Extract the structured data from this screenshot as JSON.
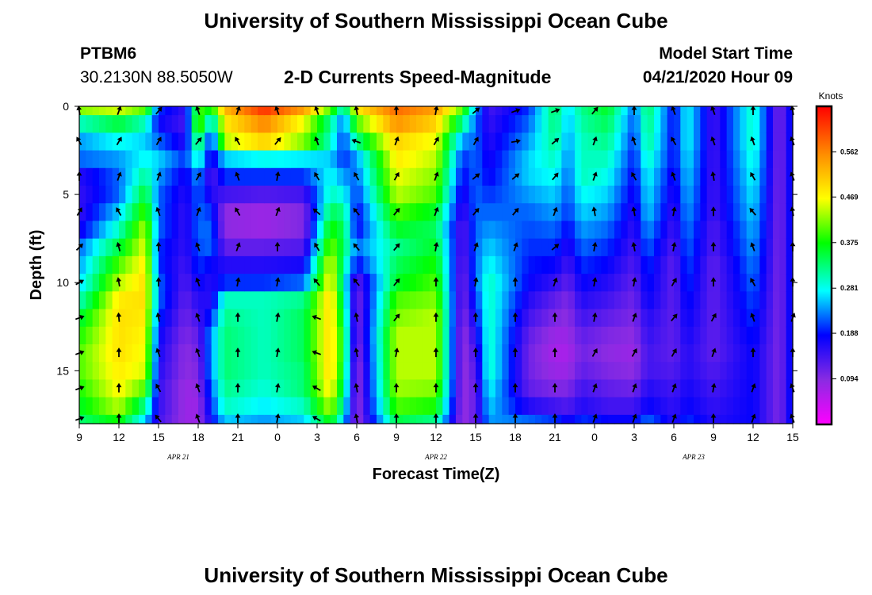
{
  "header": {
    "title": "University of Southern Mississippi Ocean Cube",
    "station_id": "PTBM6",
    "station_coords": "30.2130N 88.5050W",
    "subtitle": "2-D Currents Speed-Magnitude",
    "model_label": "Model Start Time",
    "model_time": "04/21/2020 Hour 09"
  },
  "footer": {
    "title": "University of Southern Mississippi Ocean Cube"
  },
  "chart_data": {
    "type": "heatmap",
    "xlabel": "Forecast Time(Z)",
    "ylabel": "Depth (ft)",
    "x_hours": [
      0,
      54
    ],
    "x_tick_labels": [
      "9",
      "12",
      "15",
      "18",
      "21",
      "0",
      "3",
      "6",
      "9",
      "12",
      "15",
      "18",
      "21",
      "0",
      "3",
      "6",
      "9",
      "12",
      "15"
    ],
    "date_labels": [
      {
        "label": "APR  21",
        "hour": 7.5
      },
      {
        "label": "APR  22",
        "hour": 27
      },
      {
        "label": "APR  23",
        "hour": 46.5
      }
    ],
    "y_range_ft": [
      0,
      18
    ],
    "y_ticks": [
      0,
      5,
      10,
      15
    ],
    "y_tick_labels": [
      "0",
      "5",
      "10",
      "15"
    ],
    "colorbar": {
      "unit": "Knots",
      "range": [
        0,
        0.656
      ],
      "ticks": [
        0.094,
        0.188,
        0.281,
        0.375,
        0.469,
        0.562
      ],
      "tick_labels": [
        "0.094",
        "0.188",
        "0.281",
        "0.375",
        "0.469",
        "0.562"
      ]
    },
    "grid": false,
    "depth_rows_ft": [
      0,
      1,
      2,
      3,
      4,
      5,
      6,
      7,
      8,
      9,
      10,
      11,
      12,
      13,
      14,
      15,
      16,
      17,
      18
    ],
    "speed_profiles": [
      {
        "hour": 0,
        "values": [
          0.42,
          0.3,
          0.24,
          0.22,
          0.16,
          0.15,
          0.15,
          0.17,
          0.22,
          0.24,
          0.26,
          0.3,
          0.35,
          0.38,
          0.4,
          0.4,
          0.38,
          0.36,
          0.33
        ]
      },
      {
        "hour": 3,
        "values": [
          0.45,
          0.35,
          0.28,
          0.24,
          0.22,
          0.22,
          0.26,
          0.3,
          0.35,
          0.4,
          0.44,
          0.48,
          0.49,
          0.49,
          0.49,
          0.48,
          0.47,
          0.44,
          0.38
        ]
      },
      {
        "hour": 5,
        "values": [
          0.4,
          0.3,
          0.26,
          0.28,
          0.32,
          0.36,
          0.4,
          0.44,
          0.46,
          0.48,
          0.49,
          0.49,
          0.48,
          0.47,
          0.46,
          0.45,
          0.4,
          0.32,
          0.26
        ]
      },
      {
        "hour": 6,
        "values": [
          0.2,
          0.18,
          0.22,
          0.26,
          0.24,
          0.22,
          0.22,
          0.22,
          0.2,
          0.2,
          0.22,
          0.22,
          0.2,
          0.18,
          0.17,
          0.16,
          0.15,
          0.15,
          0.14
        ]
      },
      {
        "hour": 8,
        "values": [
          0.15,
          0.14,
          0.16,
          0.2,
          0.17,
          0.16,
          0.15,
          0.15,
          0.15,
          0.14,
          0.13,
          0.12,
          0.11,
          0.1,
          0.09,
          0.09,
          0.08,
          0.08,
          0.08
        ]
      },
      {
        "hour": 9,
        "values": [
          0.4,
          0.42,
          0.36,
          0.3,
          0.24,
          0.22,
          0.22,
          0.22,
          0.21,
          0.2,
          0.18,
          0.16,
          0.14,
          0.12,
          0.11,
          0.1,
          0.09,
          0.08,
          0.08
        ]
      },
      {
        "hour": 10,
        "values": [
          0.36,
          0.26,
          0.18,
          0.16,
          0.13,
          0.16,
          0.2,
          0.22,
          0.22,
          0.18,
          0.16,
          0.16,
          0.2,
          0.24,
          0.24,
          0.24,
          0.22,
          0.2,
          0.18
        ]
      },
      {
        "hour": 11,
        "values": [
          0.52,
          0.48,
          0.44,
          0.26,
          0.2,
          0.14,
          0.09,
          0.09,
          0.12,
          0.16,
          0.2,
          0.3,
          0.32,
          0.33,
          0.33,
          0.33,
          0.32,
          0.3,
          0.26
        ]
      },
      {
        "hour": 14,
        "values": [
          0.62,
          0.56,
          0.5,
          0.28,
          0.2,
          0.13,
          0.08,
          0.08,
          0.12,
          0.16,
          0.2,
          0.3,
          0.3,
          0.3,
          0.3,
          0.3,
          0.29,
          0.27,
          0.24
        ]
      },
      {
        "hour": 17,
        "values": [
          0.54,
          0.46,
          0.42,
          0.27,
          0.2,
          0.14,
          0.1,
          0.1,
          0.13,
          0.17,
          0.22,
          0.32,
          0.34,
          0.34,
          0.34,
          0.33,
          0.33,
          0.3,
          0.26
        ]
      },
      {
        "hour": 19,
        "values": [
          0.4,
          0.32,
          0.3,
          0.26,
          0.28,
          0.3,
          0.34,
          0.38,
          0.42,
          0.46,
          0.48,
          0.5,
          0.5,
          0.5,
          0.5,
          0.5,
          0.48,
          0.44,
          0.38
        ]
      },
      {
        "hour": 20,
        "values": [
          0.28,
          0.22,
          0.2,
          0.2,
          0.24,
          0.28,
          0.32,
          0.34,
          0.34,
          0.32,
          0.3,
          0.32,
          0.34,
          0.36,
          0.36,
          0.35,
          0.33,
          0.3,
          0.26
        ]
      },
      {
        "hour": 21,
        "values": [
          0.48,
          0.4,
          0.32,
          0.24,
          0.22,
          0.2,
          0.18,
          0.18,
          0.22,
          0.18,
          0.12,
          0.1,
          0.1,
          0.1,
          0.09,
          0.08,
          0.08,
          0.08,
          0.08
        ]
      },
      {
        "hour": 24,
        "values": [
          0.58,
          0.55,
          0.5,
          0.48,
          0.46,
          0.44,
          0.4,
          0.36,
          0.32,
          0.34,
          0.36,
          0.4,
          0.42,
          0.44,
          0.44,
          0.44,
          0.43,
          0.4,
          0.35
        ]
      },
      {
        "hour": 27,
        "values": [
          0.54,
          0.5,
          0.46,
          0.44,
          0.42,
          0.4,
          0.36,
          0.34,
          0.36,
          0.38,
          0.4,
          0.42,
          0.44,
          0.44,
          0.44,
          0.44,
          0.42,
          0.38,
          0.32
        ]
      },
      {
        "hour": 29,
        "values": [
          0.4,
          0.32,
          0.24,
          0.2,
          0.18,
          0.16,
          0.14,
          0.12,
          0.12,
          0.11,
          0.1,
          0.1,
          0.09,
          0.08,
          0.08,
          0.08,
          0.08,
          0.08,
          0.08
        ]
      },
      {
        "hour": 30,
        "values": [
          0.24,
          0.22,
          0.22,
          0.22,
          0.22,
          0.22,
          0.22,
          0.22,
          0.22,
          0.22,
          0.22,
          0.2,
          0.18,
          0.16,
          0.14,
          0.13,
          0.12,
          0.12,
          0.12
        ]
      },
      {
        "hour": 31,
        "values": [
          0.14,
          0.15,
          0.16,
          0.17,
          0.18,
          0.2,
          0.22,
          0.24,
          0.26,
          0.28,
          0.3,
          0.3,
          0.3,
          0.3,
          0.3,
          0.3,
          0.28,
          0.26,
          0.24
        ]
      },
      {
        "hour": 34,
        "values": [
          0.2,
          0.22,
          0.24,
          0.26,
          0.26,
          0.24,
          0.22,
          0.21,
          0.2,
          0.19,
          0.18,
          0.16,
          0.14,
          0.12,
          0.11,
          0.11,
          0.12,
          0.16,
          0.22
        ]
      },
      {
        "hour": 36,
        "values": [
          0.34,
          0.33,
          0.32,
          0.3,
          0.28,
          0.26,
          0.24,
          0.22,
          0.2,
          0.18,
          0.15,
          0.12,
          0.1,
          0.08,
          0.07,
          0.08,
          0.1,
          0.14,
          0.2
        ]
      },
      {
        "hour": 37,
        "values": [
          0.26,
          0.25,
          0.24,
          0.23,
          0.22,
          0.21,
          0.2,
          0.18,
          0.16,
          0.14,
          0.12,
          0.1,
          0.09,
          0.08,
          0.07,
          0.08,
          0.1,
          0.13,
          0.17
        ]
      },
      {
        "hour": 38,
        "values": [
          0.32,
          0.31,
          0.3,
          0.3,
          0.3,
          0.28,
          0.26,
          0.24,
          0.22,
          0.2,
          0.18,
          0.16,
          0.14,
          0.12,
          0.11,
          0.12,
          0.14,
          0.16,
          0.2
        ]
      },
      {
        "hour": 40,
        "values": [
          0.36,
          0.34,
          0.32,
          0.3,
          0.28,
          0.26,
          0.24,
          0.22,
          0.2,
          0.18,
          0.16,
          0.14,
          0.12,
          0.1,
          0.09,
          0.1,
          0.12,
          0.14,
          0.18
        ]
      },
      {
        "hour": 42,
        "values": [
          0.22,
          0.21,
          0.2,
          0.19,
          0.18,
          0.17,
          0.16,
          0.15,
          0.14,
          0.13,
          0.12,
          0.11,
          0.1,
          0.09,
          0.08,
          0.09,
          0.11,
          0.14,
          0.18
        ]
      },
      {
        "hour": 43,
        "values": [
          0.34,
          0.33,
          0.32,
          0.3,
          0.28,
          0.27,
          0.26,
          0.24,
          0.22,
          0.2,
          0.19,
          0.18,
          0.16,
          0.15,
          0.14,
          0.14,
          0.16,
          0.18,
          0.22
        ]
      },
      {
        "hour": 45,
        "values": [
          0.18,
          0.18,
          0.18,
          0.18,
          0.17,
          0.16,
          0.15,
          0.14,
          0.13,
          0.12,
          0.12,
          0.12,
          0.12,
          0.12,
          0.12,
          0.13,
          0.14,
          0.15,
          0.16
        ]
      },
      {
        "hour": 46,
        "values": [
          0.28,
          0.28,
          0.28,
          0.27,
          0.26,
          0.25,
          0.24,
          0.23,
          0.22,
          0.21,
          0.2,
          0.19,
          0.18,
          0.17,
          0.16,
          0.16,
          0.17,
          0.18,
          0.2
        ]
      },
      {
        "hour": 48,
        "values": [
          0.14,
          0.14,
          0.14,
          0.14,
          0.14,
          0.14,
          0.14,
          0.13,
          0.13,
          0.12,
          0.12,
          0.12,
          0.12,
          0.12,
          0.12,
          0.13,
          0.14,
          0.15,
          0.16
        ]
      },
      {
        "hour": 51,
        "values": [
          0.3,
          0.3,
          0.3,
          0.29,
          0.28,
          0.27,
          0.26,
          0.25,
          0.24,
          0.23,
          0.22,
          0.21,
          0.2,
          0.19,
          0.18,
          0.18,
          0.18,
          0.18,
          0.18
        ]
      },
      {
        "hour": 53,
        "values": [
          0.1,
          0.1,
          0.1,
          0.1,
          0.1,
          0.1,
          0.1,
          0.1,
          0.1,
          0.1,
          0.1,
          0.1,
          0.1,
          0.1,
          0.1,
          0.1,
          0.1,
          0.1,
          0.1
        ]
      },
      {
        "hour": 54,
        "values": [
          0.2,
          0.2,
          0.2,
          0.2,
          0.2,
          0.2,
          0.2,
          0.2,
          0.2,
          0.2,
          0.2,
          0.2,
          0.2,
          0.2,
          0.2,
          0.2,
          0.2,
          0.2,
          0.2
        ]
      }
    ],
    "vector_hours": [
      0,
      3,
      6,
      9,
      12,
      15,
      18,
      21,
      24,
      27,
      30,
      33,
      36,
      39,
      42,
      45,
      48,
      51,
      54
    ],
    "vector_depths_ft": [
      0,
      2,
      4,
      6,
      8,
      10,
      12,
      14,
      16,
      18
    ],
    "vector_direction_deg": [
      [
        170,
        150,
        180,
        210,
        225,
        240,
        250,
        250,
        250,
        250
      ],
      [
        200,
        210,
        200,
        150,
        165,
        170,
        175,
        180,
        180,
        180
      ],
      [
        220,
        210,
        200,
        160,
        180,
        180,
        170,
        160,
        150,
        140
      ],
      [
        160,
        220,
        210,
        200,
        160,
        160,
        160,
        160,
        160,
        160
      ],
      [
        200,
        150,
        160,
        150,
        200,
        190,
        180,
        180,
        180,
        180
      ],
      [
        160,
        220,
        190,
        200,
        180,
        190,
        190,
        190,
        190,
        190
      ],
      [
        160,
        160,
        150,
        130,
        150,
        140,
        110,
        110,
        120,
        120
      ],
      [
        170,
        110,
        150,
        140,
        140,
        140,
        170,
        170,
        170,
        170
      ],
      [
        180,
        200,
        210,
        220,
        220,
        220,
        220,
        190,
        180,
        180
      ],
      [
        190,
        210,
        200,
        200,
        190,
        180,
        180,
        180,
        180,
        180
      ],
      [
        230,
        210,
        230,
        220,
        200,
        190,
        180,
        180,
        180,
        180
      ],
      [
        250,
        260,
        230,
        220,
        200,
        180,
        180,
        180,
        180,
        180
      ],
      [
        250,
        230,
        220,
        200,
        230,
        200,
        180,
        180,
        180,
        180
      ],
      [
        220,
        200,
        200,
        170,
        190,
        190,
        190,
        210,
        200,
        200
      ],
      [
        180,
        160,
        150,
        170,
        170,
        190,
        200,
        210,
        200,
        200
      ],
      [
        160,
        150,
        160,
        190,
        190,
        210,
        220,
        210,
        200,
        200
      ],
      [
        160,
        160,
        170,
        180,
        180,
        180,
        210,
        200,
        190,
        180
      ],
      [
        180,
        160,
        150,
        140,
        160,
        150,
        160,
        180,
        200,
        200
      ],
      [
        170,
        160,
        160,
        170,
        180,
        180,
        200,
        180,
        160,
        160
      ]
    ]
  }
}
